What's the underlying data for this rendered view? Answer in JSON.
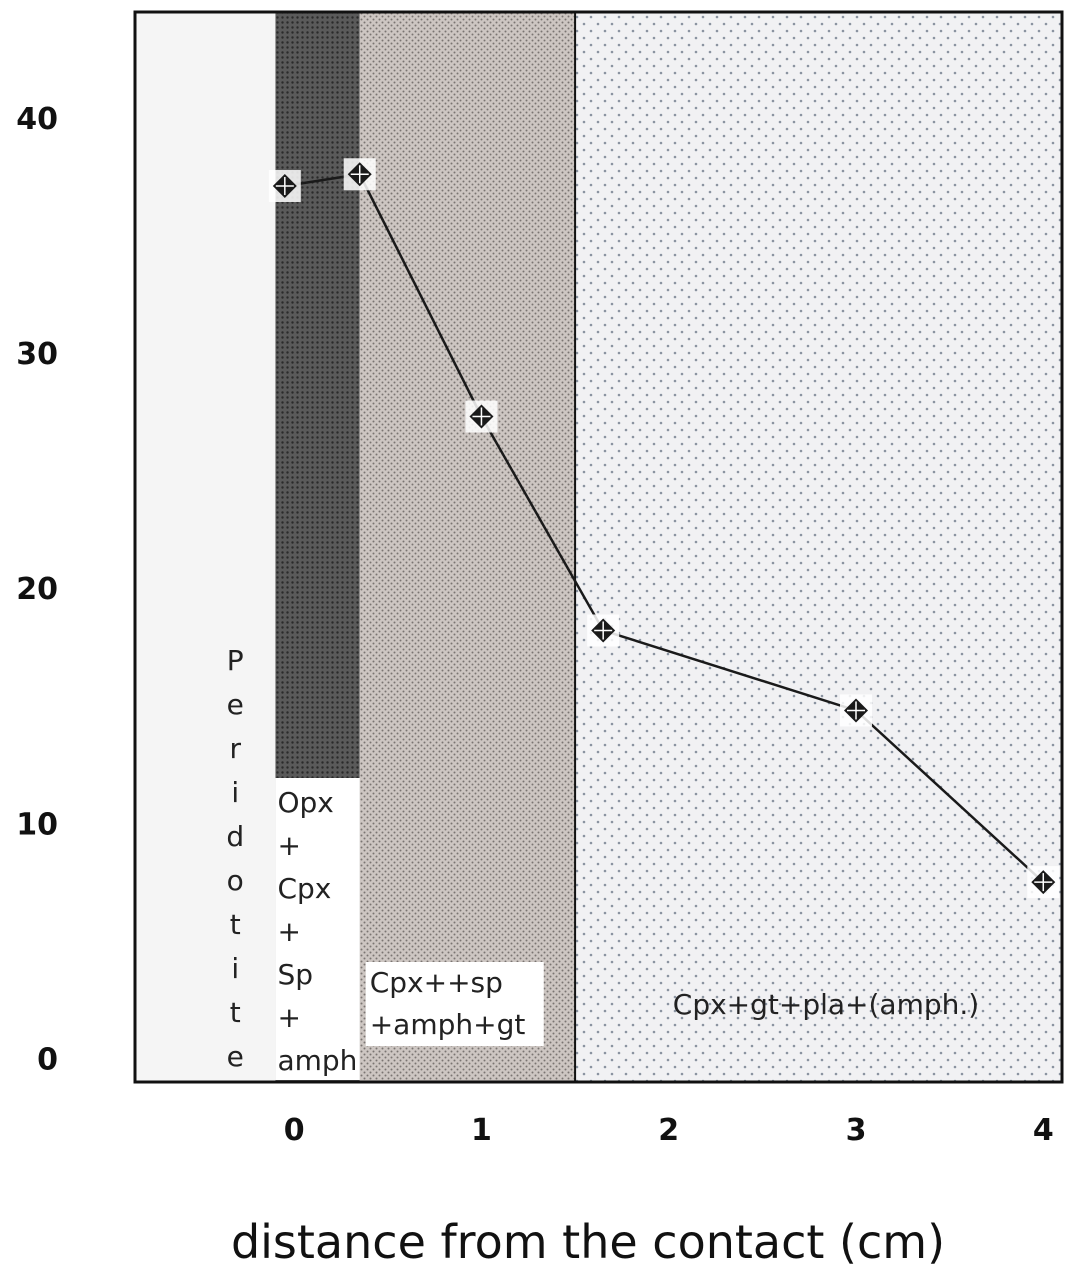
{
  "chart_data": {
    "type": "line",
    "title": "",
    "xlabel": "distance from the contact (cm)",
    "ylabel": "",
    "xlim": [
      -0.85,
      4.1
    ],
    "ylim": [
      -1,
      44.5
    ],
    "x_ticks": [
      "0",
      "1",
      "2",
      "3",
      "4"
    ],
    "y_ticks": [
      "0",
      "10",
      "20",
      "30",
      "40"
    ],
    "series": [
      {
        "marker": "diamond",
        "color": "#1a1a1a",
        "x": [
          -0.05,
          0.35,
          1.0,
          1.65,
          3.0,
          4.0
        ],
        "y": [
          37.1,
          37.6,
          27.3,
          18.2,
          14.8,
          7.5
        ]
      }
    ],
    "zones": [
      {
        "name": "peridotite",
        "from": -0.85,
        "to": -0.1,
        "label": "Peridotite",
        "vertical": true,
        "color": "#f5f5f5"
      },
      {
        "name": "opx-cpx",
        "from": -0.1,
        "to": 0.35,
        "lines": [
          "Opx",
          "+",
          "Cpx",
          "+",
          "Sp",
          "+",
          "amph"
        ],
        "color": "#555555"
      },
      {
        "name": "cpx-sp",
        "from": 0.35,
        "to": 1.5,
        "lines": [
          "Cpx++sp",
          "+amph+gt"
        ],
        "color": "#cfc7c3"
      },
      {
        "name": "cpx-gt",
        "from": 1.5,
        "to": 4.1,
        "lines": [
          "Cpx+gt+pla+(amph.)"
        ],
        "color": "#eeeef0"
      }
    ]
  }
}
